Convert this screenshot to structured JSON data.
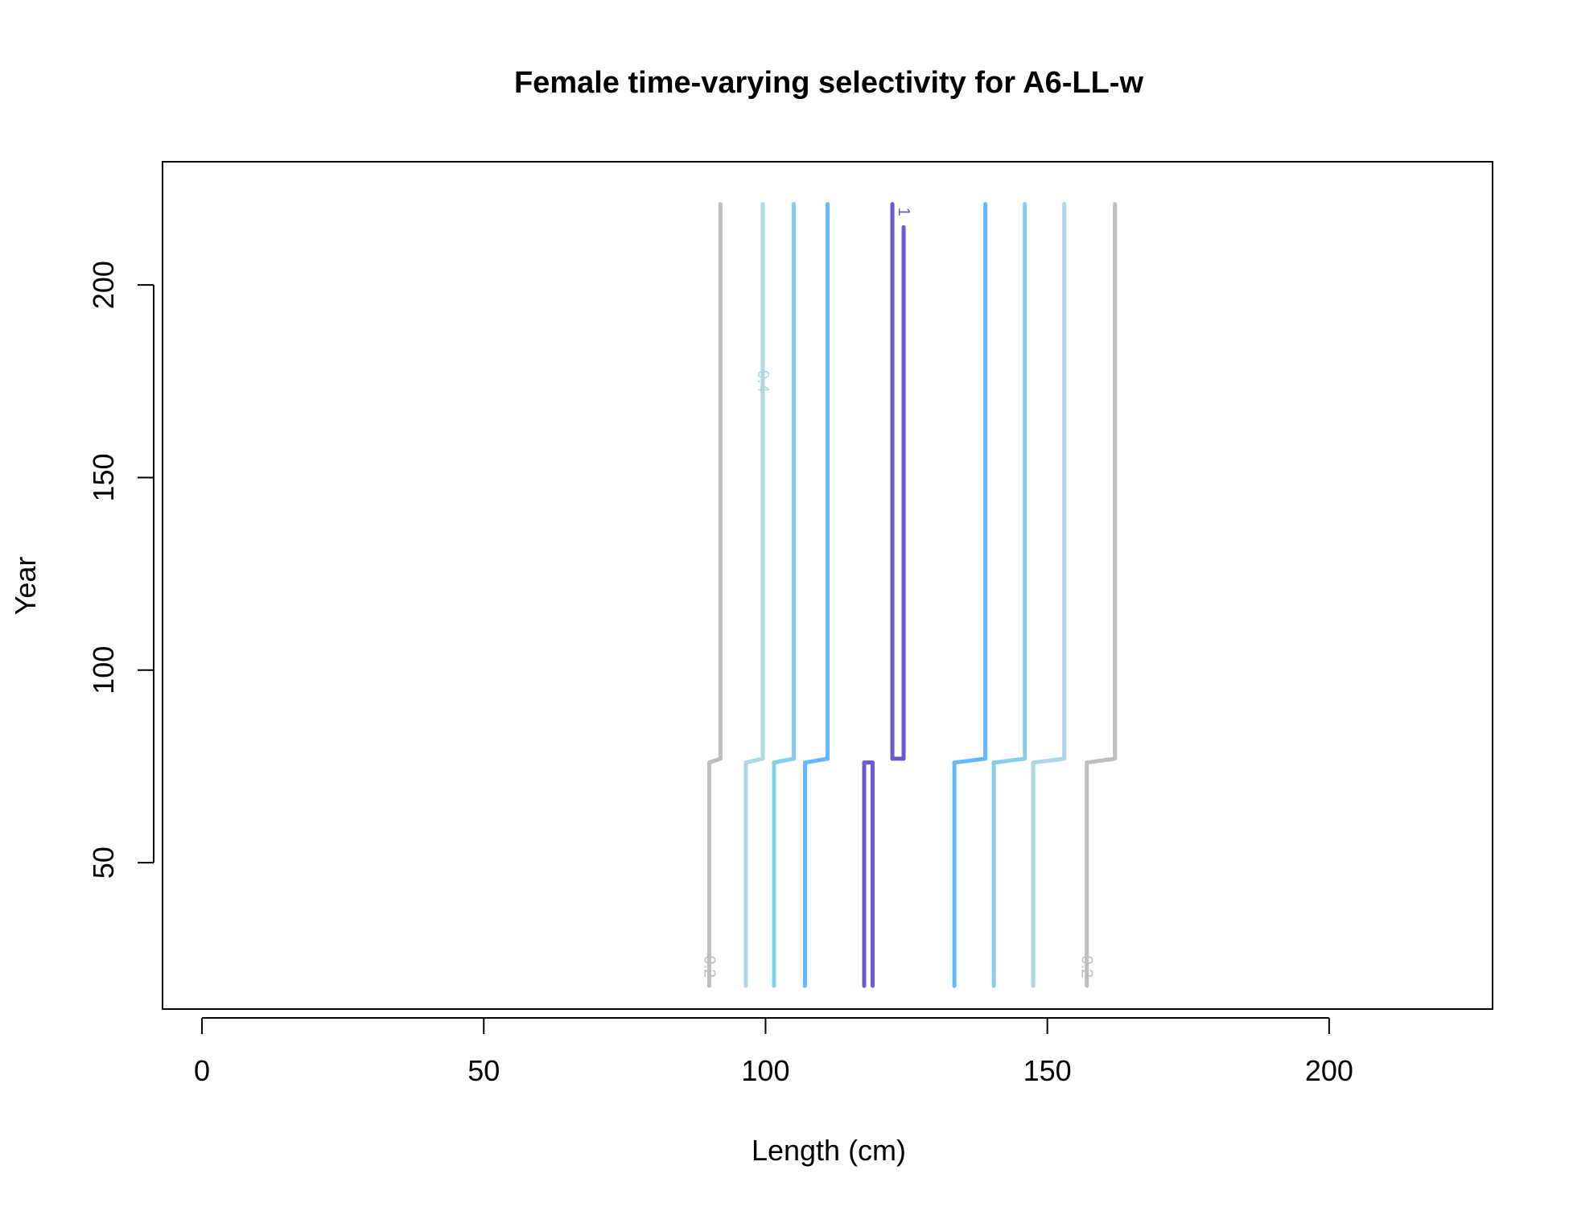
{
  "chart_data": {
    "type": "contour",
    "title": "Female time-varying selectivity for A6-LL-w",
    "xlabel": "Length (cm)",
    "ylabel": "Year",
    "xlim": [
      -7,
      229
    ],
    "ylim": [
      12,
      232
    ],
    "xticks": [
      0,
      50,
      100,
      150,
      200
    ],
    "yticks": [
      50,
      100,
      150,
      200
    ],
    "grid": false,
    "legend": "none",
    "colors": {
      "0.2": "#bebebe",
      "0.4": "#add8e6",
      "0.6": "#87ceeb",
      "0.8": "#63b8ff",
      "1": "#6a5acd"
    },
    "contours": [
      {
        "level": "0.2",
        "side": "left",
        "segments": [
          [
            90,
            18,
            90,
            76
          ],
          [
            90,
            76,
            92,
            77
          ],
          [
            92,
            77,
            92,
            221
          ]
        ],
        "label": "0.2",
        "label_at": [
          90,
          23
        ]
      },
      {
        "level": "0.4",
        "side": "left",
        "segments": [
          [
            96.5,
            18,
            96.5,
            76
          ],
          [
            96.5,
            76,
            99.5,
            77
          ],
          [
            99.5,
            77,
            99.5,
            221
          ]
        ],
        "label": "0.4",
        "label_at": [
          99.5,
          175
        ]
      },
      {
        "level": "0.6",
        "side": "left",
        "segments": [
          [
            101.5,
            18,
            101.5,
            76
          ],
          [
            101.5,
            76,
            105,
            77
          ],
          [
            105,
            77,
            105,
            221
          ]
        ],
        "label": "",
        "label_at": null
      },
      {
        "level": "0.8",
        "side": "left",
        "segments": [
          [
            107,
            18,
            107,
            76
          ],
          [
            107,
            76,
            111,
            77
          ],
          [
            111,
            77,
            111,
            221
          ]
        ],
        "label": "",
        "label_at": null
      },
      {
        "level": "1",
        "side": "peak",
        "segments": [
          [
            117.5,
            18,
            117.5,
            76
          ],
          [
            117.5,
            76,
            119,
            76
          ],
          [
            119,
            76,
            119,
            18
          ],
          [
            122.5,
            221,
            122.5,
            77
          ],
          [
            122.5,
            77,
            124.5,
            77
          ],
          [
            124.5,
            77,
            124.5,
            215
          ]
        ],
        "label": "1",
        "label_at": [
          124.5,
          219
        ]
      },
      {
        "level": "0.8",
        "side": "right",
        "segments": [
          [
            133.5,
            18,
            133.5,
            76
          ],
          [
            133.5,
            76,
            139,
            77
          ],
          [
            139,
            77,
            139,
            221
          ]
        ],
        "label": "",
        "label_at": null
      },
      {
        "level": "0.6",
        "side": "right",
        "segments": [
          [
            140.5,
            18,
            140.5,
            76
          ],
          [
            140.5,
            76,
            146,
            77
          ],
          [
            146,
            77,
            146,
            221
          ]
        ],
        "label": "",
        "label_at": null
      },
      {
        "level": "0.4",
        "side": "right",
        "segments": [
          [
            147.5,
            18,
            147.5,
            76
          ],
          [
            147.5,
            76,
            153,
            77
          ],
          [
            153,
            77,
            153,
            221
          ]
        ],
        "label": "",
        "label_at": null
      },
      {
        "level": "0.2",
        "side": "right",
        "segments": [
          [
            157,
            18,
            157,
            76
          ],
          [
            157,
            76,
            162,
            77
          ],
          [
            162,
            77,
            162,
            221
          ]
        ],
        "label": "0.2",
        "label_at": [
          157,
          23
        ]
      }
    ]
  }
}
